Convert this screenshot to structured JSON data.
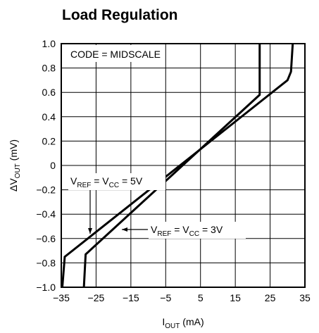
{
  "chart_data": {
    "type": "line",
    "title": "Load Regulation",
    "x_label": [
      "I",
      "OUT",
      " (mA)"
    ],
    "y_label": [
      "ΔV",
      "OUT",
      " (mV)"
    ],
    "annotation": "CODE = MIDSCALE",
    "xlim": [
      -35,
      35
    ],
    "xticks": [
      {
        "value": -35,
        "label": "−35"
      },
      {
        "value": -25,
        "label": "−25"
      },
      {
        "value": -15,
        "label": "−15"
      },
      {
        "value": -5,
        "label": "−5"
      },
      5,
      15,
      25,
      35
    ],
    "ylim": [
      -1,
      1
    ],
    "yticks": [
      {
        "value": 1,
        "label": "1.0"
      },
      0.8,
      0.6,
      0.4,
      0.2,
      0,
      {
        "value": -0.2,
        "label": "−0.2"
      },
      {
        "value": -0.4,
        "label": "−0.4"
      },
      {
        "value": -0.6,
        "label": "−0.6"
      },
      {
        "value": -0.8,
        "label": "−0.8"
      },
      {
        "value": -1,
        "label": "−1.0"
      }
    ],
    "grid": true,
    "series": [
      {
        "name": [
          "V",
          "REF",
          " = V",
          "CC",
          " = 5V"
        ],
        "color": "#000000",
        "x": [
          -34.7,
          -34,
          30,
          31,
          31.5
        ],
        "values": [
          -1,
          -0.75,
          0.7,
          0.77,
          1
        ]
      },
      {
        "name": [
          "V",
          "REF",
          " = V",
          "CC",
          " = 3V"
        ],
        "color": "#000000",
        "x": [
          -28.5,
          -28,
          22,
          22
        ],
        "values": [
          -1,
          -0.73,
          0.58,
          1
        ]
      }
    ]
  }
}
